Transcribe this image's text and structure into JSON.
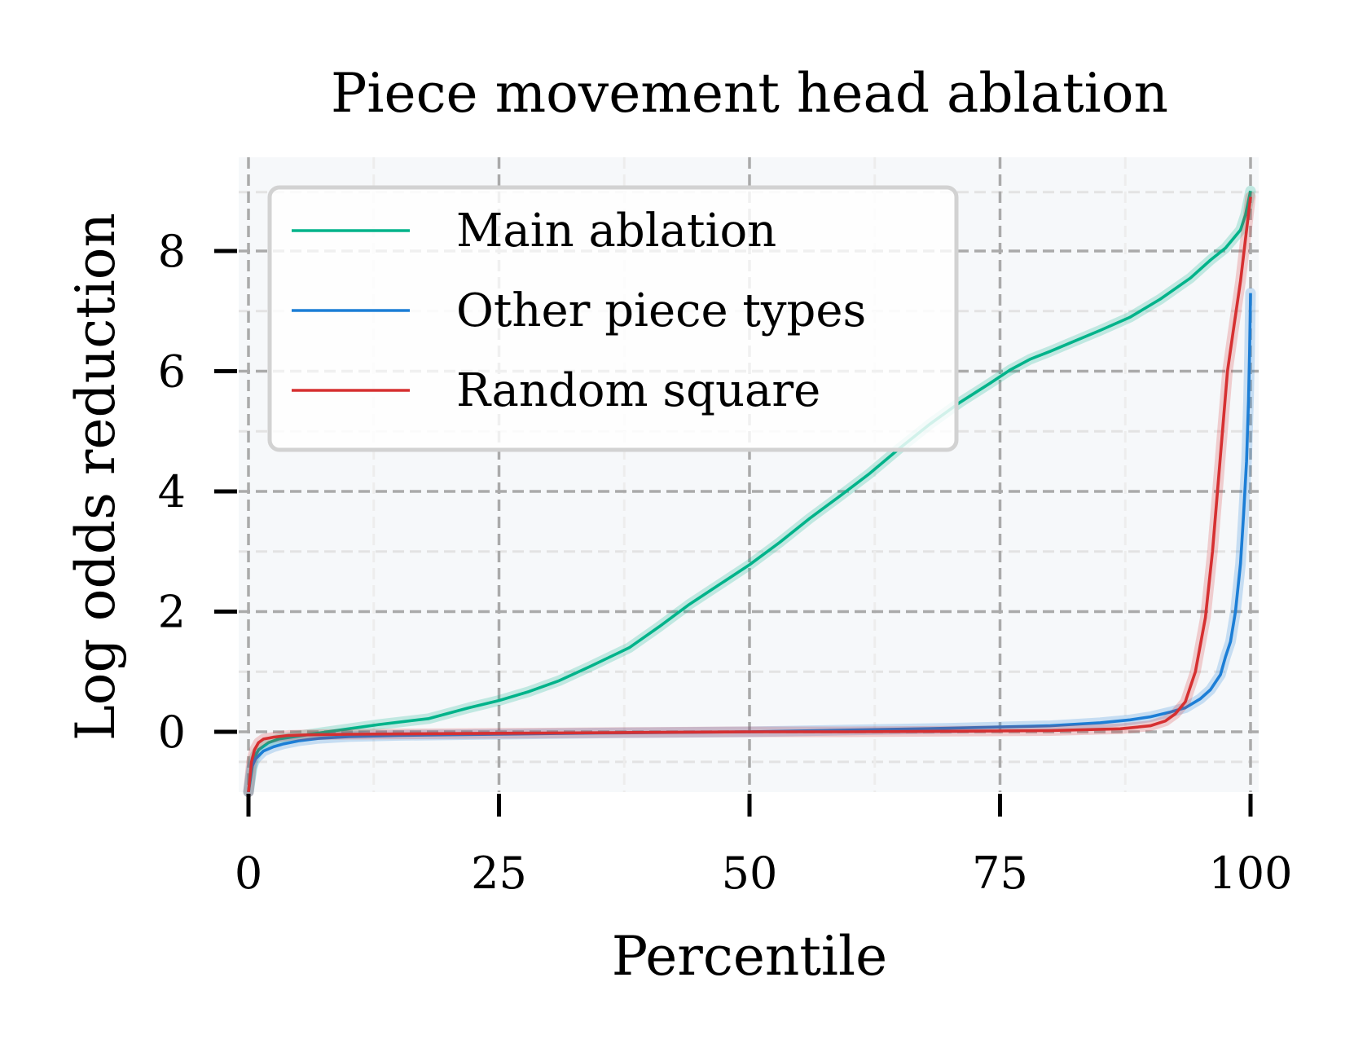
{
  "chart_data": {
    "type": "line",
    "title": "Piece movement head ablation",
    "xlabel": "Percentile",
    "ylabel": "Log odds reduction",
    "xlim": [
      0,
      100
    ],
    "ylim": [
      -1,
      9.6
    ],
    "x_ticks": [
      "0",
      "25",
      "50",
      "75",
      "100"
    ],
    "y_ticks": [
      "0",
      "2",
      "4",
      "6",
      "8"
    ],
    "grid": true,
    "legend_position": "top-left",
    "series": [
      {
        "name": "Main ablation",
        "color": "#00b38a",
        "x": [
          0,
          0.5,
          1,
          2,
          3,
          5,
          7,
          10,
          13,
          18,
          22,
          25,
          28,
          31,
          34,
          38,
          41,
          44,
          47,
          50,
          53,
          56,
          59,
          62,
          65,
          68,
          71,
          74,
          76,
          78,
          80,
          82,
          85,
          88,
          91,
          94,
          96,
          97.5,
          99,
          99.5,
          100
        ],
        "y": [
          -1,
          -0.45,
          -0.3,
          -0.18,
          -0.12,
          -0.07,
          -0.02,
          0.05,
          0.12,
          0.22,
          0.4,
          0.52,
          0.67,
          0.85,
          1.08,
          1.4,
          1.75,
          2.12,
          2.45,
          2.78,
          3.15,
          3.55,
          3.92,
          4.3,
          4.72,
          5.12,
          5.48,
          5.8,
          6.02,
          6.2,
          6.33,
          6.47,
          6.68,
          6.9,
          7.2,
          7.55,
          7.85,
          8.05,
          8.35,
          8.6,
          9.0
        ]
      },
      {
        "name": "Other piece types",
        "color": "#1c7ed6",
        "x": [
          0,
          0.3,
          0.7,
          1.5,
          2.5,
          3.5,
          5,
          7,
          10,
          15,
          25,
          35,
          50,
          60,
          70,
          75,
          80,
          85,
          88,
          90,
          92,
          93.5,
          95,
          96,
          97,
          97.5,
          98,
          98.5,
          99,
          99.3,
          99.6,
          99.8,
          99.9,
          100
        ],
        "y": [
          -1,
          -0.6,
          -0.45,
          -0.32,
          -0.25,
          -0.2,
          -0.15,
          -0.11,
          -0.08,
          -0.06,
          -0.04,
          -0.02,
          0,
          0.03,
          0.06,
          0.08,
          0.1,
          0.15,
          0.2,
          0.25,
          0.33,
          0.4,
          0.55,
          0.7,
          0.95,
          1.25,
          1.5,
          2.0,
          2.8,
          3.6,
          4.5,
          5.5,
          6.3,
          7.3
        ]
      },
      {
        "name": "Random square",
        "color": "#d63031",
        "x": [
          0,
          0.3,
          0.6,
          1,
          1.5,
          2.5,
          4,
          6,
          10,
          20,
          30,
          40,
          50,
          60,
          70,
          80,
          87,
          90,
          91.5,
          92.5,
          93.5,
          94.5,
          95.5,
          96.2,
          97,
          97.7,
          98.3,
          99,
          99.5,
          100
        ],
        "y": [
          -1,
          -0.5,
          -0.3,
          -0.18,
          -0.12,
          -0.09,
          -0.06,
          -0.05,
          -0.04,
          -0.03,
          -0.02,
          -0.01,
          0,
          0,
          0.01,
          0.02,
          0.05,
          0.1,
          0.18,
          0.3,
          0.5,
          1.0,
          1.9,
          3.0,
          4.6,
          6.0,
          6.7,
          7.5,
          8.2,
          8.9
        ]
      }
    ]
  }
}
